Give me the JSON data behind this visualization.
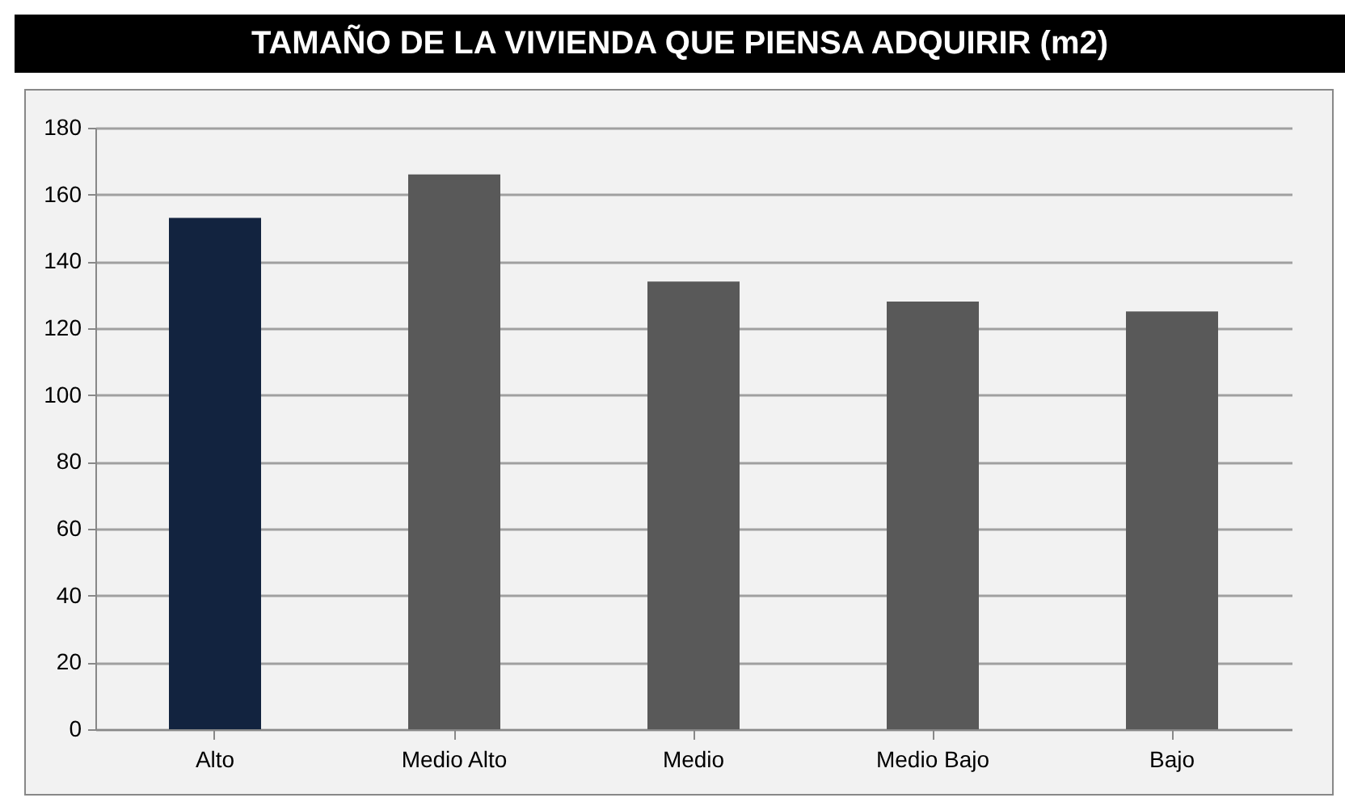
{
  "chart_data": {
    "type": "bar",
    "title": "TAMAÑO DE LA VIVIENDA QUE PIENSA ADQUIRIR (m2)",
    "categories": [
      "Alto",
      "Medio Alto",
      "Medio",
      "Medio Bajo",
      "Bajo"
    ],
    "values": [
      153,
      166,
      134,
      128,
      125
    ],
    "colors": [
      "#12233f",
      "#595959",
      "#595959",
      "#595959",
      "#595959"
    ],
    "ylim": [
      0,
      180
    ],
    "yticks": [
      0,
      20,
      40,
      60,
      80,
      100,
      120,
      140,
      160,
      180
    ],
    "grid": "y",
    "legend": false
  }
}
